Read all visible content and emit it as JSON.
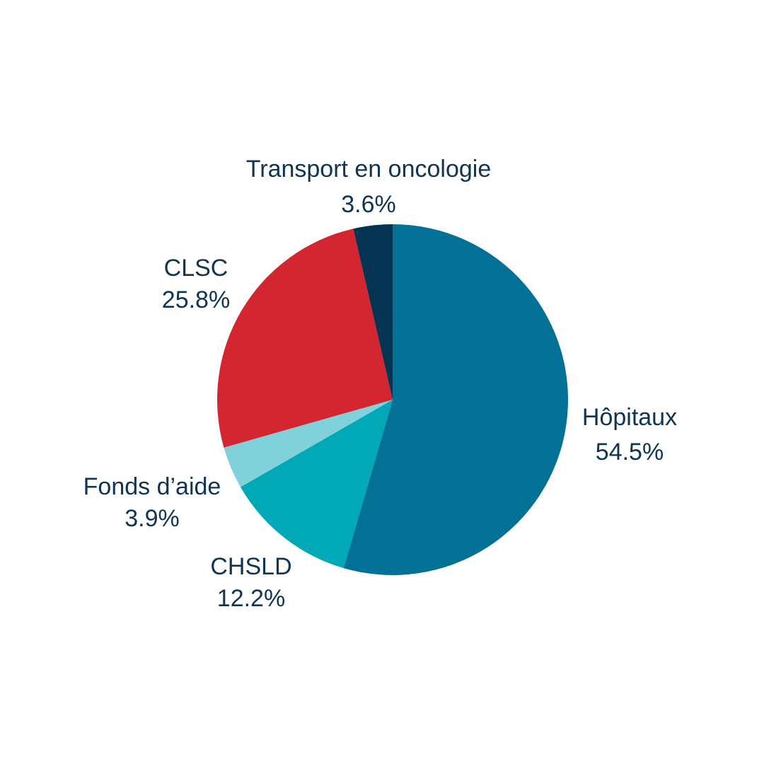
{
  "chart_data": {
    "type": "pie",
    "start_angle_deg": 0,
    "direction": "clockwise",
    "slices": [
      {
        "label": "Hôpitaux",
        "value": 54.5,
        "value_label": "54.5%",
        "color": "#037196"
      },
      {
        "label": "CHSLD",
        "value": 12.2,
        "value_label": "12.2%",
        "color": "#01a8b5"
      },
      {
        "label": "Fonds d’aide",
        "value": 3.9,
        "value_label": "3.9%",
        "color": "#80d1d9"
      },
      {
        "label": "CLSC",
        "value": 25.8,
        "value_label": "25.8%",
        "color": "#d32630"
      },
      {
        "label": "Transport en oncologie",
        "value": 3.6,
        "value_label": "3.6%",
        "color": "#043452"
      }
    ]
  }
}
